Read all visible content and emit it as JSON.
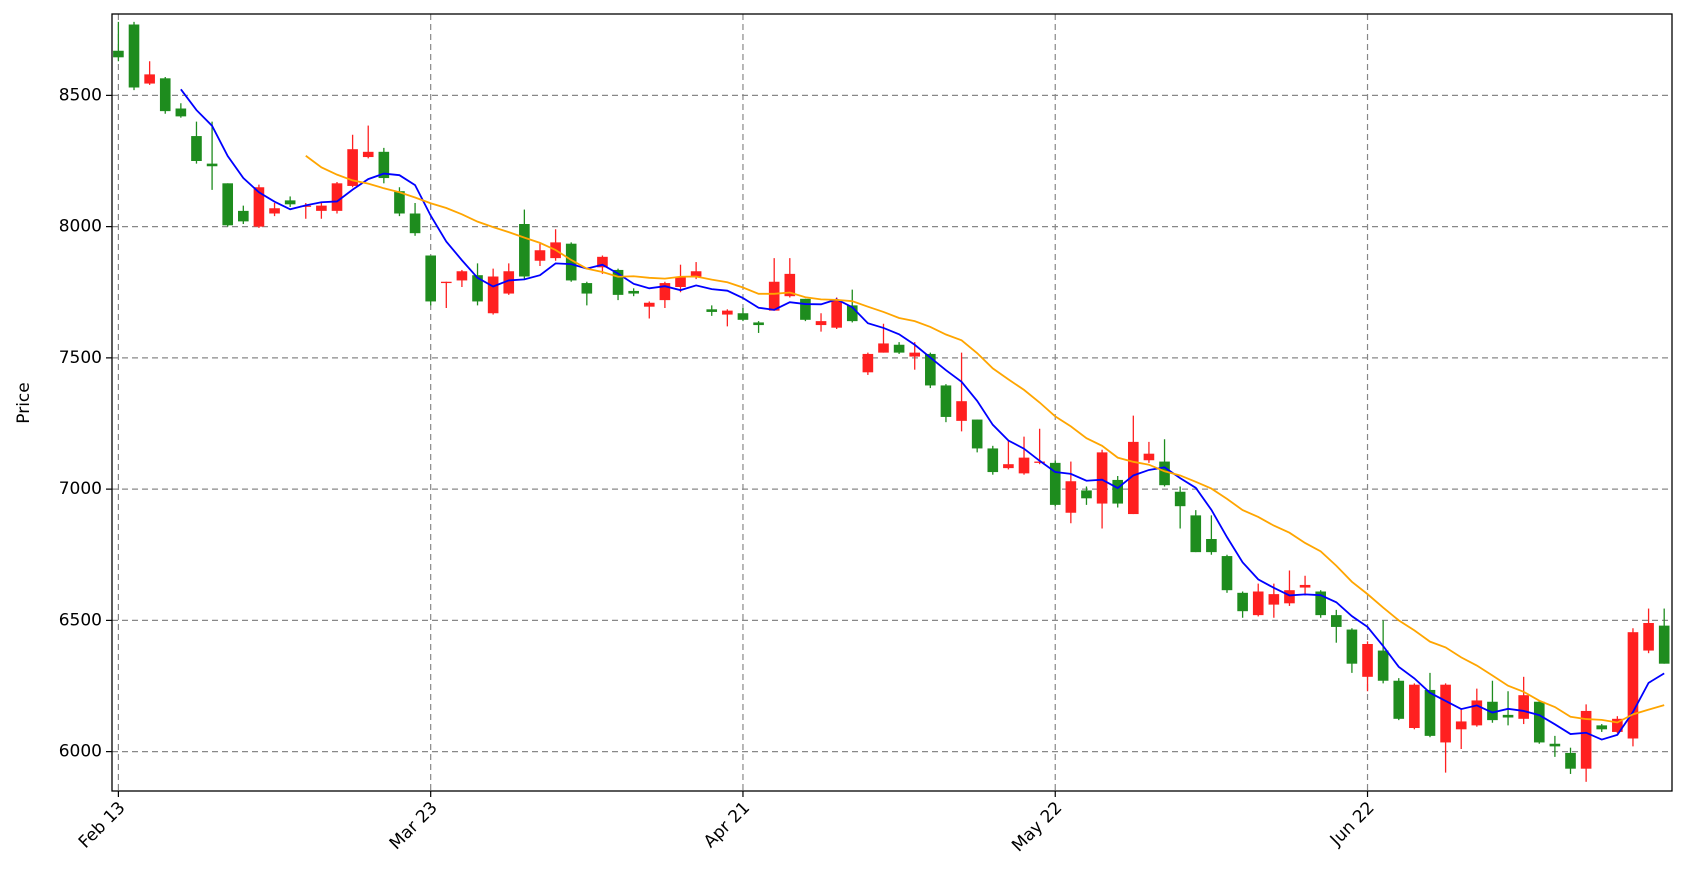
{
  "chart_data": {
    "type": "candlestick",
    "ylabel": "Price",
    "categories": [
      "Feb 13",
      null,
      null,
      null,
      null,
      null,
      null,
      null,
      null,
      null,
      null,
      null,
      null,
      null,
      null,
      null,
      null,
      null,
      null,
      null,
      "Mar 23",
      null,
      null,
      null,
      null,
      null,
      null,
      null,
      null,
      null,
      null,
      null,
      null,
      null,
      null,
      null,
      null,
      null,
      null,
      null,
      "Apr 21",
      null,
      null,
      null,
      null,
      null,
      null,
      null,
      null,
      null,
      null,
      null,
      null,
      null,
      null,
      null,
      null,
      null,
      null,
      null,
      "May 22",
      null,
      null,
      null,
      null,
      null,
      null,
      null,
      null,
      null,
      null,
      null,
      null,
      null,
      null,
      null,
      null,
      null,
      null,
      null,
      "Jun 22",
      null,
      null,
      null,
      null,
      null,
      null,
      null,
      null,
      null,
      null,
      null,
      null,
      null,
      null,
      null,
      null,
      null,
      null,
      null
    ],
    "open": [
      8670,
      8770,
      8545,
      8565,
      8450,
      8345,
      8240,
      8165,
      8060,
      8000,
      8050,
      8100,
      8080,
      8060,
      8060,
      8155,
      8265,
      8285,
      8135,
      8050,
      7890,
      7785,
      7795,
      7815,
      7670,
      7745,
      8010,
      7870,
      7880,
      7935,
      7785,
      7845,
      7835,
      7755,
      7695,
      7720,
      7770,
      7810,
      7685,
      7665,
      7670,
      7635,
      7680,
      7735,
      7725,
      7625,
      7615,
      7700,
      7445,
      7520,
      7550,
      7505,
      7515,
      7395,
      7260,
      7265,
      7155,
      7080,
      7060,
      7100,
      7100,
      6910,
      6995,
      6945,
      7035,
      6905,
      7110,
      7105,
      6990,
      6900,
      6810,
      6745,
      6605,
      6520,
      6560,
      6565,
      6625,
      6610,
      6520,
      6465,
      6285,
      6385,
      6270,
      6090,
      6235,
      6035,
      6085,
      6100,
      6190,
      6140,
      6125,
      6190,
      6030,
      5995,
      5935,
      6100,
      6075,
      6050,
      6385,
      6480
    ],
    "high": [
      8780,
      8780,
      8630,
      8570,
      8470,
      8400,
      8400,
      8165,
      8080,
      8160,
      8090,
      8115,
      8090,
      8090,
      8170,
      8350,
      8385,
      8300,
      8150,
      8090,
      7890,
      7790,
      7835,
      7860,
      7840,
      7860,
      8065,
      7935,
      7990,
      7940,
      7790,
      7890,
      7840,
      7765,
      7715,
      7790,
      7855,
      7865,
      7700,
      7685,
      7690,
      7640,
      7880,
      7880,
      7725,
      7670,
      7730,
      7760,
      7520,
      7630,
      7560,
      7560,
      7520,
      7400,
      7520,
      7265,
      7165,
      7185,
      7200,
      7230,
      7110,
      7105,
      7010,
      7150,
      7050,
      7280,
      7180,
      7190,
      7010,
      6920,
      6900,
      6750,
      6610,
      6640,
      6640,
      6690,
      6670,
      6615,
      6540,
      6470,
      6420,
      6500,
      6280,
      6260,
      6300,
      6260,
      6160,
      6240,
      6270,
      6230,
      6285,
      6195,
      6060,
      6015,
      6180,
      6105,
      6135,
      6470,
      6545,
      6545
    ],
    "low": [
      8630,
      8520,
      8540,
      8430,
      8415,
      8240,
      8140,
      8000,
      8010,
      7995,
      8040,
      8075,
      8030,
      8030,
      8050,
      8150,
      8260,
      8165,
      8040,
      7965,
      7700,
      7690,
      7770,
      7700,
      7665,
      7740,
      7800,
      7850,
      7870,
      7790,
      7700,
      7820,
      7720,
      7735,
      7650,
      7690,
      7750,
      7800,
      7660,
      7620,
      7640,
      7595,
      7680,
      7730,
      7640,
      7600,
      7610,
      7635,
      7435,
      7520,
      7515,
      7455,
      7385,
      7255,
      7220,
      7140,
      7055,
      7075,
      7055,
      7095,
      6935,
      6870,
      6940,
      6850,
      6930,
      6905,
      7100,
      7010,
      6850,
      6760,
      6750,
      6605,
      6510,
      6515,
      6510,
      6555,
      6595,
      6510,
      6415,
      6300,
      6230,
      6260,
      6120,
      6085,
      6055,
      5920,
      6010,
      6095,
      6110,
      6100,
      6105,
      6030,
      5980,
      5915,
      5885,
      6075,
      6070,
      6020,
      6375,
      6335
    ],
    "close": [
      8645,
      8530,
      8580,
      8440,
      8420,
      8250,
      8230,
      8005,
      8020,
      8150,
      8070,
      8085,
      8080,
      8080,
      8165,
      8295,
      8285,
      8185,
      8050,
      7975,
      7715,
      7790,
      7830,
      7715,
      7810,
      7830,
      7810,
      7910,
      7940,
      7795,
      7745,
      7885,
      7740,
      7745,
      7710,
      7785,
      7810,
      7830,
      7675,
      7680,
      7645,
      7625,
      7790,
      7820,
      7645,
      7640,
      7720,
      7640,
      7515,
      7555,
      7520,
      7520,
      7395,
      7275,
      7335,
      7155,
      7065,
      7095,
      7120,
      7105,
      6940,
      7030,
      6965,
      7140,
      6945,
      7180,
      7135,
      7015,
      6935,
      6760,
      6760,
      6615,
      6535,
      6610,
      6600,
      6615,
      6635,
      6520,
      6475,
      6335,
      6410,
      6270,
      6125,
      6255,
      6060,
      6255,
      6115,
      6195,
      6120,
      6130,
      6215,
      6035,
      6020,
      5935,
      6155,
      6085,
      6125,
      6455,
      6490,
      6335
    ],
    "up_color": "#ff2020",
    "down_color": "#1e8c1e",
    "series": [
      {
        "color": "#0000ff",
        "values": [
          null,
          null,
          null,
          null,
          8523,
          8444,
          8384,
          8269,
          8185,
          8131,
          8095,
          8066,
          8081,
          8093,
          8096,
          8141,
          8181,
          8202,
          8196,
          8158,
          8042,
          7943,
          7872,
          7805,
          7772,
          7795,
          7799,
          7815,
          7860,
          7857,
          7840,
          7855,
          7821,
          7782,
          7765,
          7773,
          7758,
          7776,
          7762,
          7756,
          7728,
          7691,
          7683,
          7712,
          7705,
          7704,
          7723,
          7693,
          7632,
          7614,
          7590,
          7550,
          7501,
          7453,
          7409,
          7336,
          7245,
          7185,
          7154,
          7108,
          7065,
          7058,
          7032,
          7036,
          7004,
          7052,
          7073,
          7083,
          7042,
          7005,
          6921,
          6817,
          6721,
          6656,
          6624,
          6595,
          6599,
          6596,
          6569,
          6516,
          6475,
          6402,
          6323,
          6279,
          6224,
          6193,
          6162,
          6176,
          6149,
          6163,
          6155,
          6139,
          6104,
          6067,
          6072,
          6046,
          6064,
          6151,
          6262,
          6298
        ]
      },
      {
        "color": "#ffa500",
        "values": [
          null,
          null,
          null,
          null,
          null,
          null,
          null,
          null,
          null,
          null,
          null,
          null,
          8270,
          8226,
          8198,
          8176,
          8164,
          8146,
          8131,
          8111,
          8089,
          8071,
          8047,
          8019,
          7998,
          7979,
          7958,
          7938,
          7911,
          7873,
          7840,
          7827,
          7809,
          7811,
          7805,
          7802,
          7809,
          7810,
          7798,
          7788,
          7768,
          7744,
          7744,
          7749,
          7731,
          7723,
          7721,
          7716,
          7695,
          7675,
          7652,
          7640,
          7618,
          7589,
          7567,
          7518,
          7460,
          7418,
          7378,
          7330,
          7277,
          7239,
          7194,
          7165,
          7120,
          7104,
          7093,
          7068,
          7052,
          7028,
          7002,
          6963,
          6920,
          6894,
          6861,
          6834,
          6795,
          6763,
          6708,
          6647,
          6600,
          6549,
          6500,
          6462,
          6419,
          6397,
          6359,
          6328,
          6290,
          6251,
          6228,
          6194,
          6170,
          6133,
          6124,
          6121,
          6111,
          6142,
          6160,
          6177
        ]
      }
    ],
    "ylim": [
      5850,
      8810
    ],
    "yticks": [
      6000,
      6500,
      7000,
      7500,
      8000,
      8500
    ],
    "grid": true
  }
}
